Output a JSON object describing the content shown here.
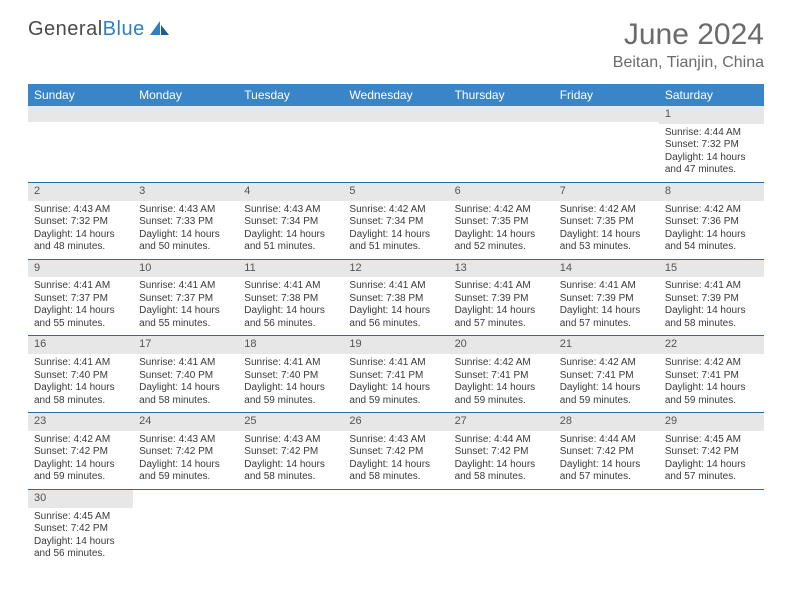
{
  "logo": {
    "text1": "General",
    "text2": "Blue"
  },
  "title": {
    "month": "June 2024",
    "location": "Beitan, Tianjin, China"
  },
  "colors": {
    "header_bg": "#3a85c7",
    "row_divider": "#2f6aa8",
    "daynum_bg": "#e7e7e7",
    "text": "#3a3a3a",
    "title_text": "#6b6b6b"
  },
  "weekdays": [
    "Sunday",
    "Monday",
    "Tuesday",
    "Wednesday",
    "Thursday",
    "Friday",
    "Saturday"
  ],
  "weeks": [
    [
      null,
      null,
      null,
      null,
      null,
      null,
      {
        "n": "1",
        "sunrise": "4:44 AM",
        "sunset": "7:32 PM",
        "dl_h": 14,
        "dl_m": 47
      }
    ],
    [
      {
        "n": "2",
        "sunrise": "4:43 AM",
        "sunset": "7:32 PM",
        "dl_h": 14,
        "dl_m": 48
      },
      {
        "n": "3",
        "sunrise": "4:43 AM",
        "sunset": "7:33 PM",
        "dl_h": 14,
        "dl_m": 50
      },
      {
        "n": "4",
        "sunrise": "4:43 AM",
        "sunset": "7:34 PM",
        "dl_h": 14,
        "dl_m": 51
      },
      {
        "n": "5",
        "sunrise": "4:42 AM",
        "sunset": "7:34 PM",
        "dl_h": 14,
        "dl_m": 51
      },
      {
        "n": "6",
        "sunrise": "4:42 AM",
        "sunset": "7:35 PM",
        "dl_h": 14,
        "dl_m": 52
      },
      {
        "n": "7",
        "sunrise": "4:42 AM",
        "sunset": "7:35 PM",
        "dl_h": 14,
        "dl_m": 53
      },
      {
        "n": "8",
        "sunrise": "4:42 AM",
        "sunset": "7:36 PM",
        "dl_h": 14,
        "dl_m": 54
      }
    ],
    [
      {
        "n": "9",
        "sunrise": "4:41 AM",
        "sunset": "7:37 PM",
        "dl_h": 14,
        "dl_m": 55
      },
      {
        "n": "10",
        "sunrise": "4:41 AM",
        "sunset": "7:37 PM",
        "dl_h": 14,
        "dl_m": 55
      },
      {
        "n": "11",
        "sunrise": "4:41 AM",
        "sunset": "7:38 PM",
        "dl_h": 14,
        "dl_m": 56
      },
      {
        "n": "12",
        "sunrise": "4:41 AM",
        "sunset": "7:38 PM",
        "dl_h": 14,
        "dl_m": 56
      },
      {
        "n": "13",
        "sunrise": "4:41 AM",
        "sunset": "7:39 PM",
        "dl_h": 14,
        "dl_m": 57
      },
      {
        "n": "14",
        "sunrise": "4:41 AM",
        "sunset": "7:39 PM",
        "dl_h": 14,
        "dl_m": 57
      },
      {
        "n": "15",
        "sunrise": "4:41 AM",
        "sunset": "7:39 PM",
        "dl_h": 14,
        "dl_m": 58
      }
    ],
    [
      {
        "n": "16",
        "sunrise": "4:41 AM",
        "sunset": "7:40 PM",
        "dl_h": 14,
        "dl_m": 58
      },
      {
        "n": "17",
        "sunrise": "4:41 AM",
        "sunset": "7:40 PM",
        "dl_h": 14,
        "dl_m": 58
      },
      {
        "n": "18",
        "sunrise": "4:41 AM",
        "sunset": "7:40 PM",
        "dl_h": 14,
        "dl_m": 59
      },
      {
        "n": "19",
        "sunrise": "4:41 AM",
        "sunset": "7:41 PM",
        "dl_h": 14,
        "dl_m": 59
      },
      {
        "n": "20",
        "sunrise": "4:42 AM",
        "sunset": "7:41 PM",
        "dl_h": 14,
        "dl_m": 59
      },
      {
        "n": "21",
        "sunrise": "4:42 AM",
        "sunset": "7:41 PM",
        "dl_h": 14,
        "dl_m": 59
      },
      {
        "n": "22",
        "sunrise": "4:42 AM",
        "sunset": "7:41 PM",
        "dl_h": 14,
        "dl_m": 59
      }
    ],
    [
      {
        "n": "23",
        "sunrise": "4:42 AM",
        "sunset": "7:42 PM",
        "dl_h": 14,
        "dl_m": 59
      },
      {
        "n": "24",
        "sunrise": "4:43 AM",
        "sunset": "7:42 PM",
        "dl_h": 14,
        "dl_m": 59
      },
      {
        "n": "25",
        "sunrise": "4:43 AM",
        "sunset": "7:42 PM",
        "dl_h": 14,
        "dl_m": 58
      },
      {
        "n": "26",
        "sunrise": "4:43 AM",
        "sunset": "7:42 PM",
        "dl_h": 14,
        "dl_m": 58
      },
      {
        "n": "27",
        "sunrise": "4:44 AM",
        "sunset": "7:42 PM",
        "dl_h": 14,
        "dl_m": 58
      },
      {
        "n": "28",
        "sunrise": "4:44 AM",
        "sunset": "7:42 PM",
        "dl_h": 14,
        "dl_m": 57
      },
      {
        "n": "29",
        "sunrise": "4:45 AM",
        "sunset": "7:42 PM",
        "dl_h": 14,
        "dl_m": 57
      }
    ],
    [
      {
        "n": "30",
        "sunrise": "4:45 AM",
        "sunset": "7:42 PM",
        "dl_h": 14,
        "dl_m": 56
      },
      null,
      null,
      null,
      null,
      null,
      null
    ]
  ],
  "labels": {
    "sunrise": "Sunrise:",
    "sunset": "Sunset:",
    "daylight_tpl": "Daylight: {h} hours and {m} minutes."
  }
}
